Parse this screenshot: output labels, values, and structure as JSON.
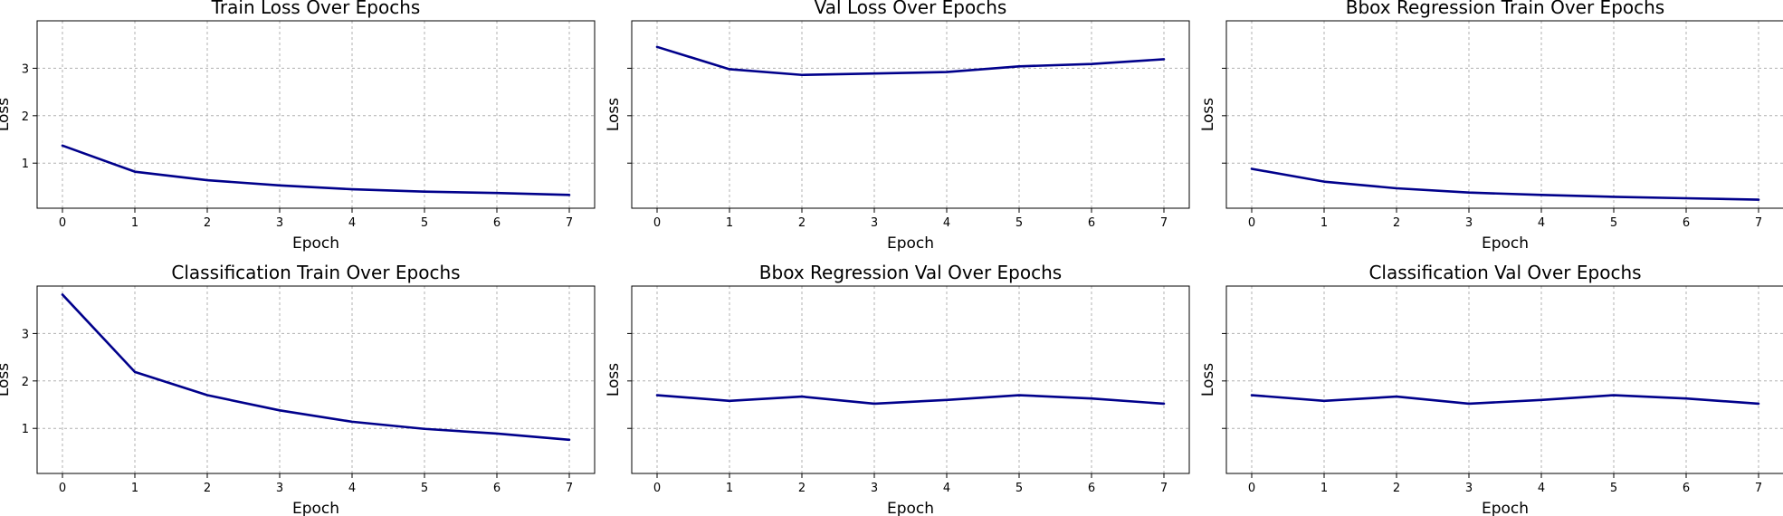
{
  "theme": {
    "line_color": "#00008b",
    "grid_color": "#b0b0b0"
  },
  "chart_data": [
    {
      "type": "line",
      "title": "Train Loss Over Epochs",
      "xlabel": "Epoch",
      "ylabel": "Loss",
      "x": [
        0,
        1,
        2,
        3,
        4,
        5,
        6,
        7
      ],
      "xlim": [
        -0.35,
        7.35
      ],
      "ylim": [
        0.05,
        4.0
      ],
      "yticks": [
        1,
        2,
        3
      ],
      "show_ytick_labels": true,
      "grid": true,
      "series": [
        {
          "values": [
            1.37,
            0.82,
            0.64,
            0.53,
            0.45,
            0.4,
            0.37,
            0.33
          ]
        }
      ]
    },
    {
      "type": "line",
      "title": "Val Loss Over Epochs",
      "xlabel": "Epoch",
      "ylabel": "Loss",
      "x": [
        0,
        1,
        2,
        3,
        4,
        5,
        6,
        7
      ],
      "xlim": [
        -0.35,
        7.35
      ],
      "ylim": [
        0.05,
        4.0
      ],
      "yticks": [
        1,
        2,
        3
      ],
      "show_ytick_labels": false,
      "grid": true,
      "series": [
        {
          "values": [
            3.45,
            2.98,
            2.86,
            2.89,
            2.92,
            3.04,
            3.09,
            3.19
          ]
        }
      ]
    },
    {
      "type": "line",
      "title": "Bbox Regression Train Over Epochs",
      "xlabel": "Epoch",
      "ylabel": "Loss",
      "x": [
        0,
        1,
        2,
        3,
        4,
        5,
        6,
        7
      ],
      "xlim": [
        -0.35,
        7.35
      ],
      "ylim": [
        0.05,
        4.0
      ],
      "yticks": [
        1,
        2,
        3
      ],
      "show_ytick_labels": false,
      "grid": true,
      "series": [
        {
          "values": [
            0.88,
            0.61,
            0.47,
            0.38,
            0.33,
            0.29,
            0.26,
            0.23
          ]
        }
      ]
    },
    {
      "type": "line",
      "title": "Classification Train Over Epochs",
      "xlabel": "Epoch",
      "ylabel": "Loss",
      "x": [
        0,
        1,
        2,
        3,
        4,
        5,
        6,
        7
      ],
      "xlim": [
        -0.35,
        7.35
      ],
      "ylim": [
        0.05,
        4.0
      ],
      "yticks": [
        1,
        2,
        3
      ],
      "show_ytick_labels": true,
      "grid": true,
      "series": [
        {
          "values": [
            3.82,
            2.19,
            1.7,
            1.38,
            1.14,
            0.99,
            0.89,
            0.76
          ]
        }
      ]
    },
    {
      "type": "line",
      "title": "Bbox Regression Val Over Epochs",
      "xlabel": "Epoch",
      "ylabel": "Loss",
      "x": [
        0,
        1,
        2,
        3,
        4,
        5,
        6,
        7
      ],
      "xlim": [
        -0.35,
        7.35
      ],
      "ylim": [
        0.05,
        4.0
      ],
      "yticks": [
        1,
        2,
        3
      ],
      "show_ytick_labels": false,
      "grid": true,
      "series": [
        {
          "values": [
            1.7,
            1.58,
            1.67,
            1.52,
            1.6,
            1.7,
            1.63,
            1.52
          ]
        }
      ]
    },
    {
      "type": "line",
      "title": "Classification Val Over Epochs",
      "xlabel": "Epoch",
      "ylabel": "Loss",
      "x": [
        0,
        1,
        2,
        3,
        4,
        5,
        6,
        7
      ],
      "xlim": [
        -0.35,
        7.35
      ],
      "ylim": [
        0.05,
        4.0
      ],
      "yticks": [
        1,
        2,
        3
      ],
      "show_ytick_labels": false,
      "grid": true,
      "series": [
        {
          "values": [
            1.7,
            1.58,
            1.67,
            1.52,
            1.6,
            1.7,
            1.63,
            1.52
          ]
        }
      ]
    }
  ]
}
